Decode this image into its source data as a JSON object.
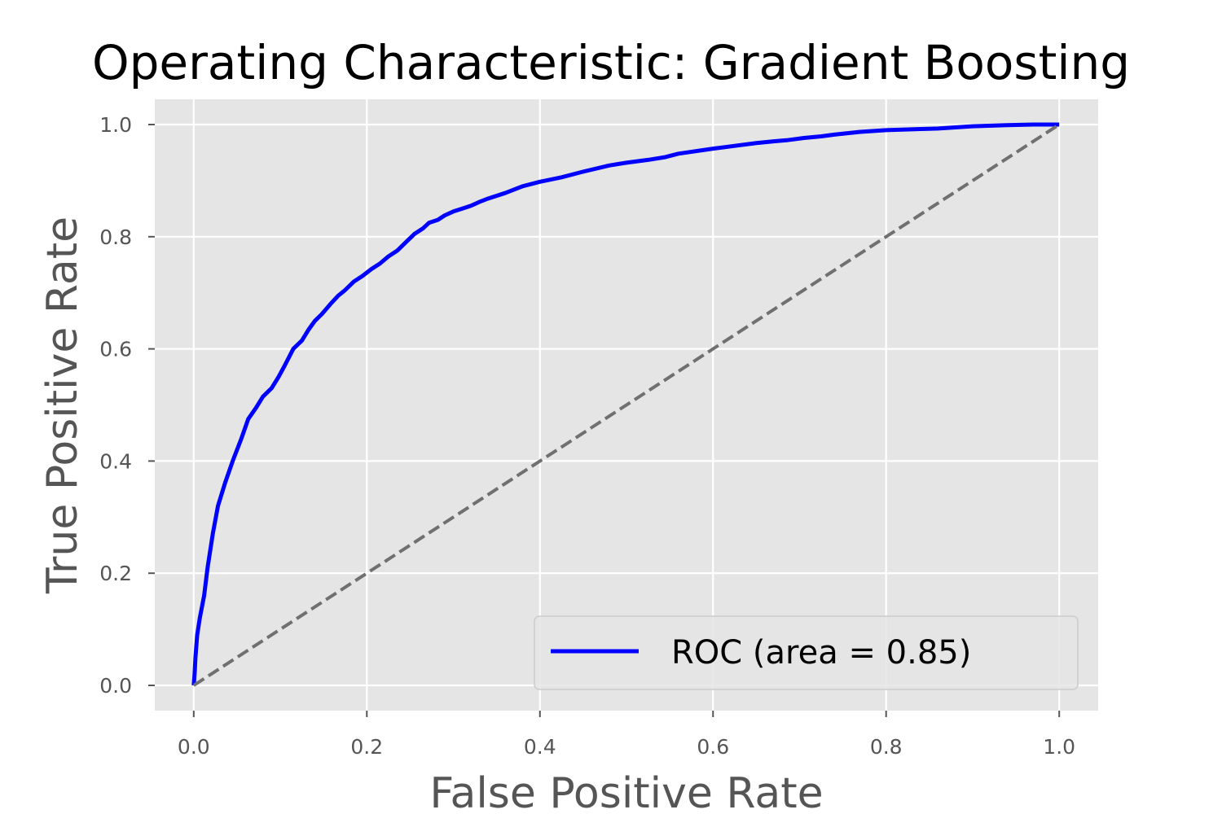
{
  "chart_data": {
    "type": "line",
    "title": "Operating Characteristic: Gradient Boosting",
    "xlabel": "False Positive Rate",
    "ylabel": "True Positive Rate",
    "xlim": [
      -0.045,
      1.045
    ],
    "ylim": [
      -0.045,
      1.045
    ],
    "xticks": [
      0.0,
      0.2,
      0.4,
      0.6,
      0.8,
      1.0
    ],
    "xtick_labels": [
      "0.0",
      "0.2",
      "0.4",
      "0.6",
      "0.8",
      "1.0"
    ],
    "yticks": [
      0.0,
      0.2,
      0.4,
      0.6,
      0.8,
      1.0
    ],
    "ytick_labels": [
      "0.0",
      "0.2",
      "0.4",
      "0.6",
      "0.8",
      "1.0"
    ],
    "grid": true,
    "background_color": "#e5e5e5",
    "grid_color": "#ffffff",
    "legend_position": "lower-right",
    "series": [
      {
        "name": "ROC (area = 0.85)",
        "color": "#0000ff",
        "style": "solid",
        "x": [
          0.0,
          0.001,
          0.002,
          0.004,
          0.007,
          0.012,
          0.016,
          0.022,
          0.028,
          0.036,
          0.045,
          0.055,
          0.063,
          0.072,
          0.08,
          0.09,
          0.098,
          0.105,
          0.115,
          0.125,
          0.133,
          0.14,
          0.148,
          0.158,
          0.167,
          0.175,
          0.185,
          0.195,
          0.205,
          0.215,
          0.225,
          0.235,
          0.245,
          0.255,
          0.265,
          0.272,
          0.282,
          0.29,
          0.3,
          0.31,
          0.32,
          0.33,
          0.34,
          0.36,
          0.38,
          0.4,
          0.425,
          0.45,
          0.48,
          0.5,
          0.525,
          0.545,
          0.56,
          0.6,
          0.625,
          0.65,
          0.67,
          0.685,
          0.705,
          0.725,
          0.74,
          0.77,
          0.8,
          0.84,
          0.86,
          0.88,
          0.9,
          0.94,
          0.97,
          1.0
        ],
        "y": [
          0.0,
          0.02,
          0.05,
          0.09,
          0.12,
          0.16,
          0.21,
          0.27,
          0.32,
          0.36,
          0.4,
          0.44,
          0.475,
          0.495,
          0.515,
          0.53,
          0.55,
          0.57,
          0.6,
          0.615,
          0.635,
          0.65,
          0.662,
          0.68,
          0.695,
          0.705,
          0.72,
          0.73,
          0.742,
          0.752,
          0.765,
          0.775,
          0.79,
          0.805,
          0.815,
          0.825,
          0.83,
          0.838,
          0.845,
          0.85,
          0.855,
          0.862,
          0.868,
          0.878,
          0.89,
          0.898,
          0.906,
          0.916,
          0.927,
          0.932,
          0.937,
          0.942,
          0.948,
          0.957,
          0.962,
          0.967,
          0.97,
          0.972,
          0.976,
          0.979,
          0.982,
          0.987,
          0.99,
          0.992,
          0.993,
          0.995,
          0.997,
          0.999,
          1.0,
          1.0
        ]
      },
      {
        "name": "",
        "color": "#707070",
        "style": "dashed",
        "x": [
          0.0,
          1.0
        ],
        "y": [
          0.0,
          1.0
        ]
      }
    ],
    "legend_entries": [
      "ROC (area = 0.85)"
    ]
  }
}
